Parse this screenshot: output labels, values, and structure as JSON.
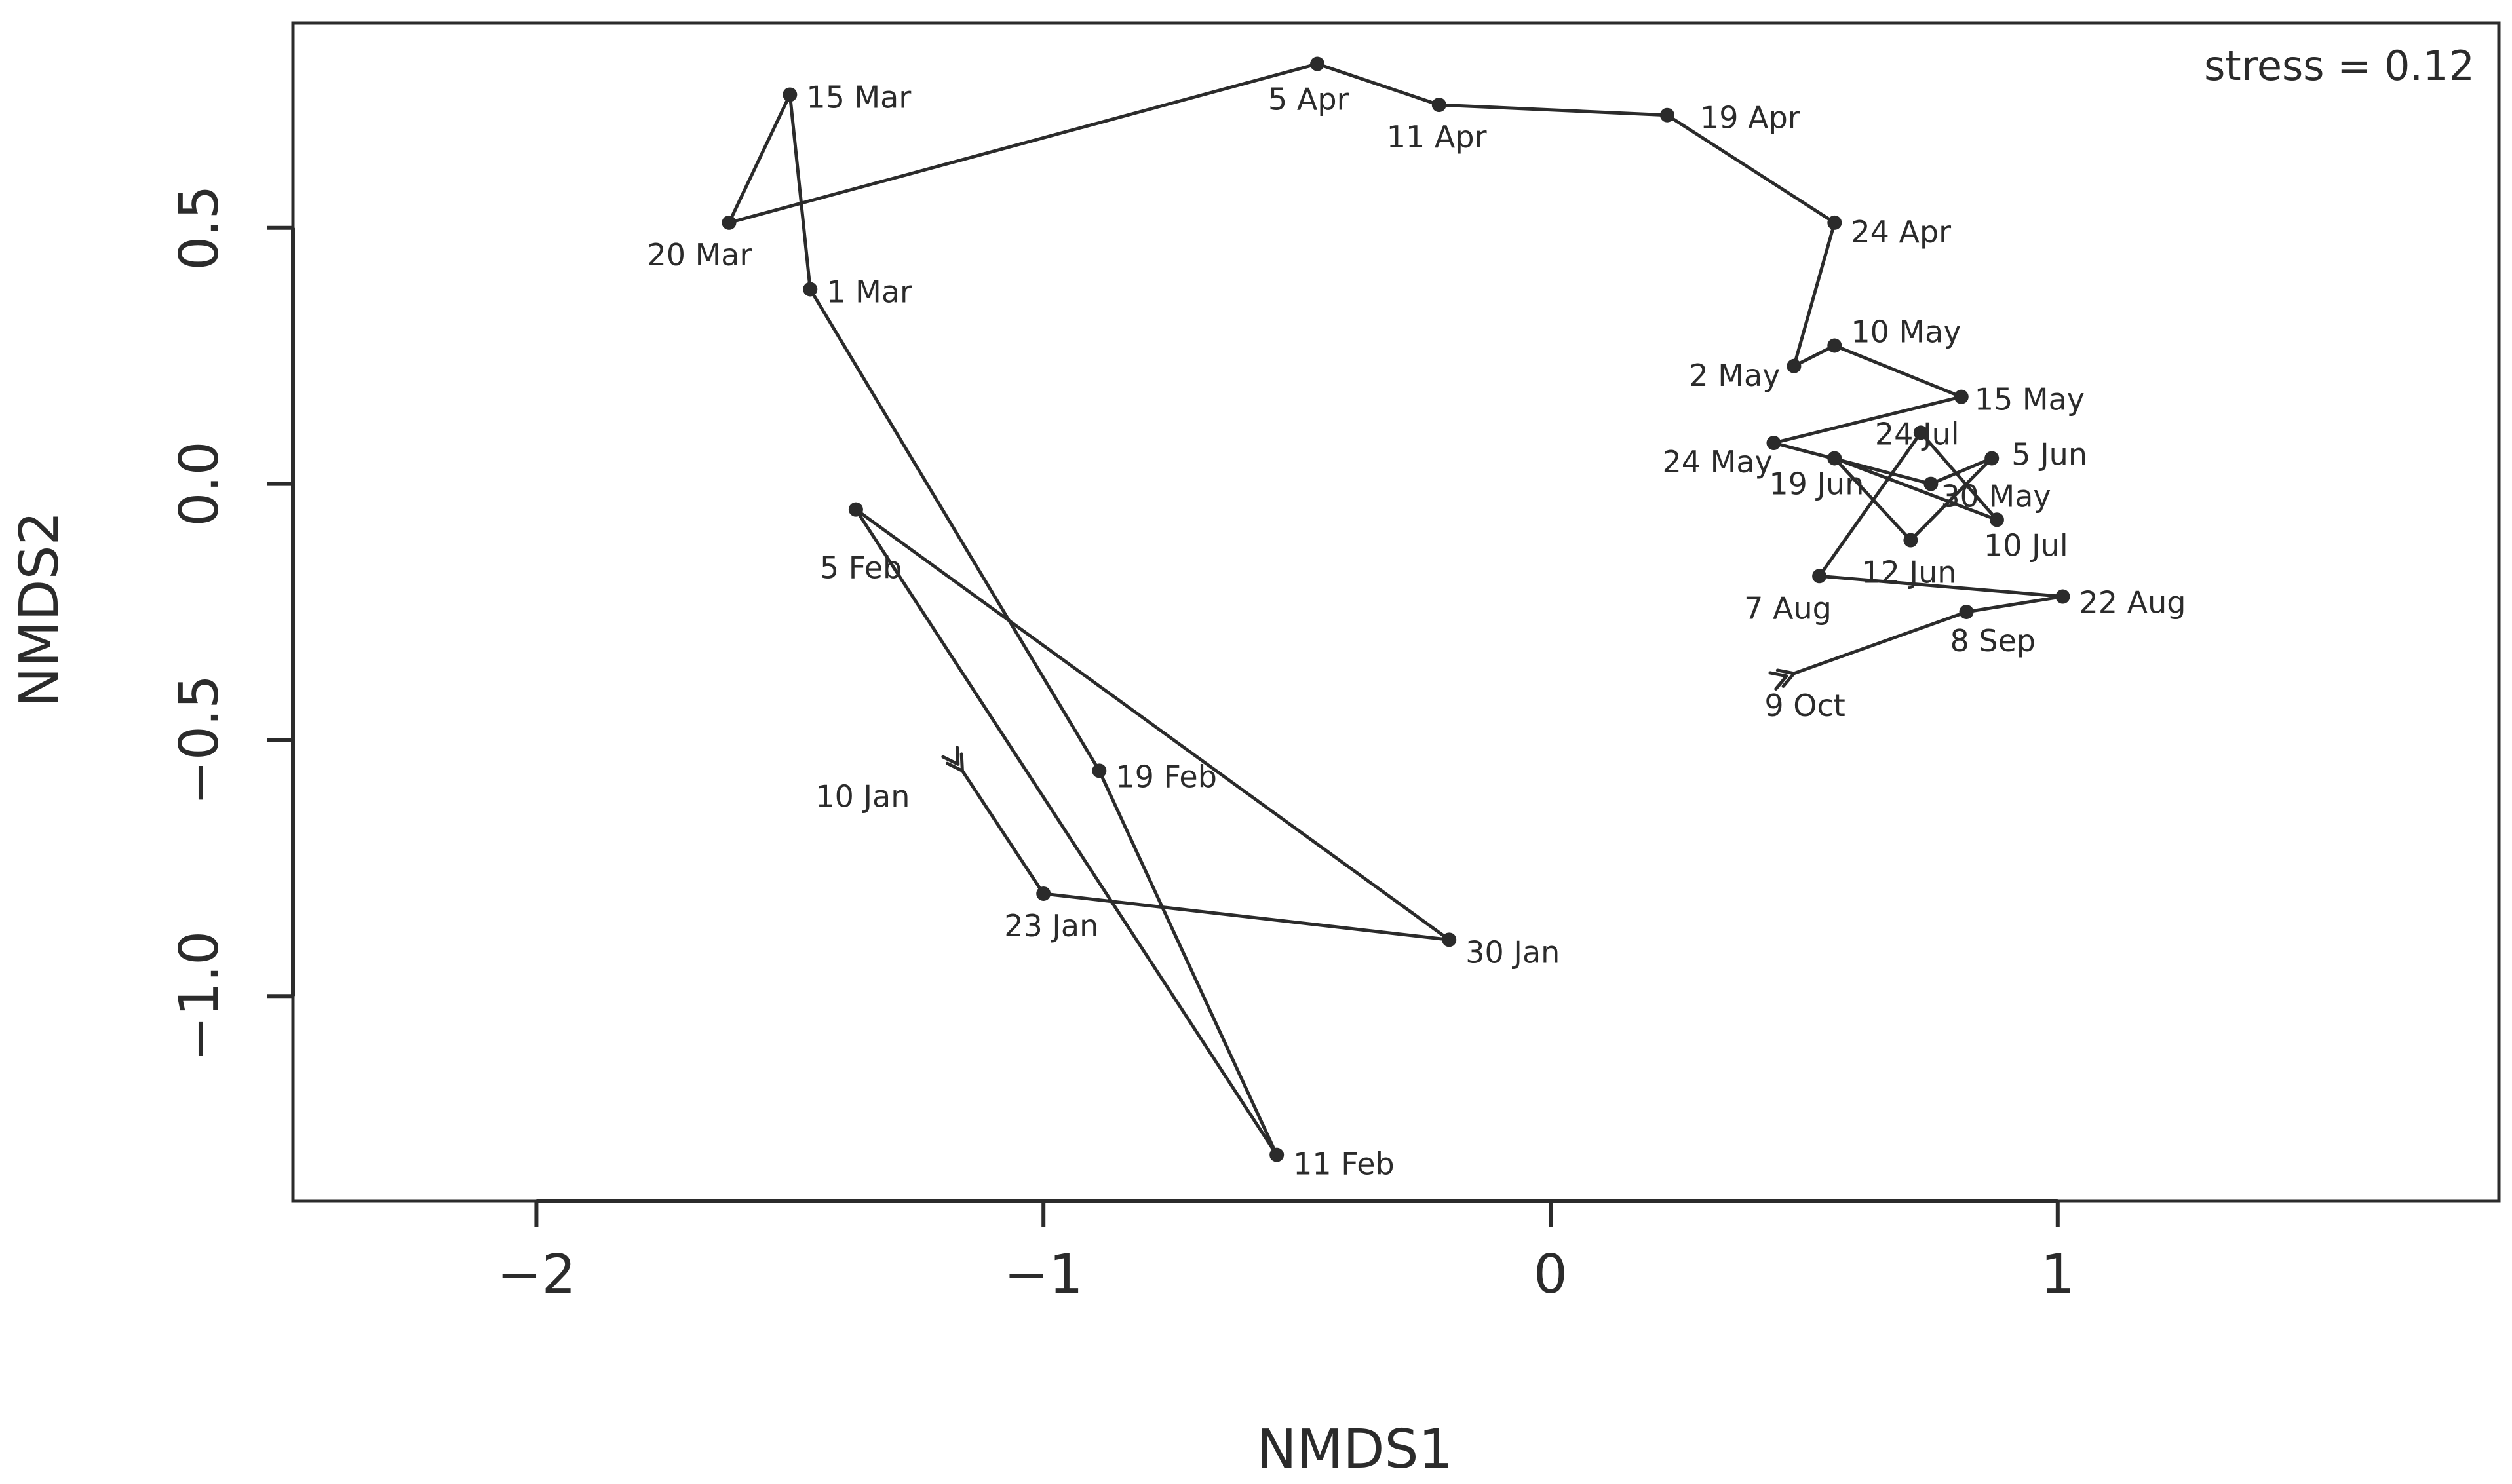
{
  "chart_data": {
    "type": "line",
    "xlabel": "NMDS1",
    "ylabel": "NMDS2",
    "annotation": "stress = 0.12",
    "xlim": [
      -2.48,
      1.87
    ],
    "ylim": [
      -1.4,
      0.9
    ],
    "x_ticks": [
      -2,
      -1,
      0,
      1
    ],
    "x_tick_labels": [
      "−2",
      "−1",
      "0",
      "1"
    ],
    "y_ticks": [
      -1.0,
      -0.5,
      0.0,
      0.5
    ],
    "y_tick_labels": [
      "−1.0",
      "−0.5",
      "0.0",
      "0.5"
    ],
    "colors": {
      "ink": "#2b2b2b",
      "background": "#ffffff"
    },
    "points": [
      {
        "label": "10 Jan",
        "x": -1.16,
        "y": -0.56,
        "start": true
      },
      {
        "label": "23 Jan",
        "x": -1.0,
        "y": -0.8
      },
      {
        "label": "30 Jan",
        "x": -0.2,
        "y": -0.89
      },
      {
        "label": "5 Feb",
        "x": -1.37,
        "y": -0.05
      },
      {
        "label": "11 Feb",
        "x": -0.54,
        "y": -1.31
      },
      {
        "label": "19 Feb",
        "x": -0.89,
        "y": -0.56
      },
      {
        "label": "1 Mar",
        "x": -1.46,
        "y": 0.38
      },
      {
        "label": "15 Mar",
        "x": -1.5,
        "y": 0.76
      },
      {
        "label": "20 Mar",
        "x": -1.62,
        "y": 0.51
      },
      {
        "label": "5 Apr",
        "x": -0.46,
        "y": 0.82
      },
      {
        "label": "11 Apr",
        "x": -0.22,
        "y": 0.74
      },
      {
        "label": "19 Apr",
        "x": 0.23,
        "y": 0.72
      },
      {
        "label": "24 Apr",
        "x": 0.56,
        "y": 0.51
      },
      {
        "label": "2 May",
        "x": 0.48,
        "y": 0.23
      },
      {
        "label": "10 May",
        "x": 0.56,
        "y": 0.27
      },
      {
        "label": "15 May",
        "x": 0.81,
        "y": 0.17
      },
      {
        "label": "24 May",
        "x": 0.44,
        "y": 0.08
      },
      {
        "label": "30 May",
        "x": 0.75,
        "y": 0.0
      },
      {
        "label": "5 Jun",
        "x": 0.87,
        "y": 0.05
      },
      {
        "label": "12 Jun",
        "x": 0.71,
        "y": -0.11
      },
      {
        "label": "19 Jun",
        "x": 0.56,
        "y": 0.05
      },
      {
        "label": "10 Jul",
        "x": 0.88,
        "y": -0.07
      },
      {
        "label": "24 Jul",
        "x": 0.73,
        "y": 0.1
      },
      {
        "label": "7 Aug",
        "x": 0.53,
        "y": -0.18
      },
      {
        "label": "22 Aug",
        "x": 1.01,
        "y": -0.22
      },
      {
        "label": "8 Sep",
        "x": 0.82,
        "y": -0.25
      },
      {
        "label": "9 Oct",
        "x": 0.48,
        "y": -0.37,
        "end": true
      }
    ]
  }
}
